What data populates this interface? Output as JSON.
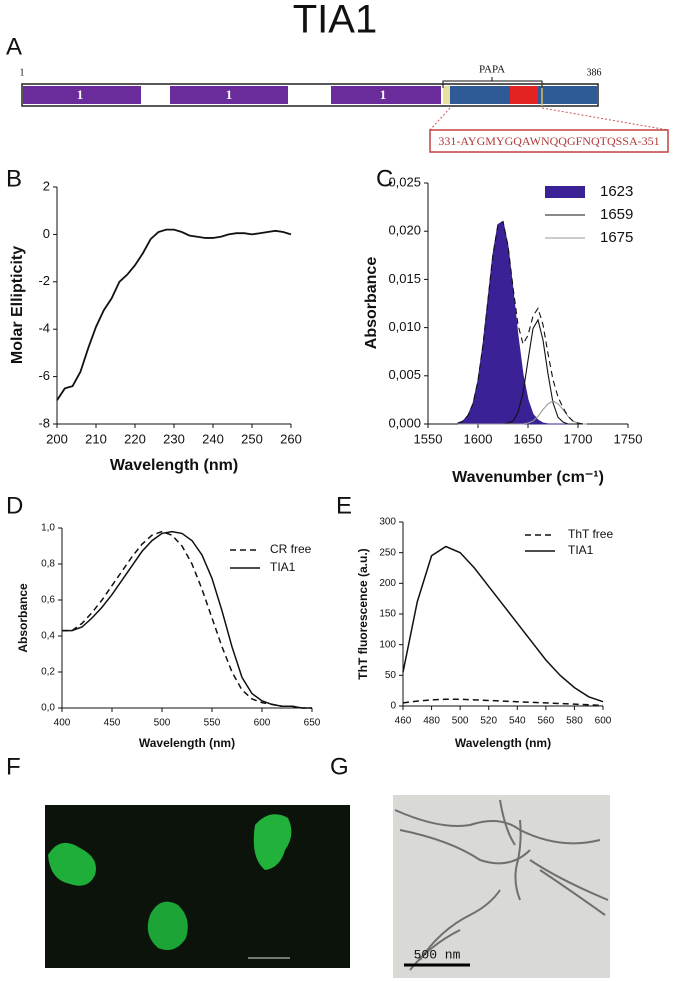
{
  "title": "TIA1",
  "panel_a": {
    "label": "A",
    "start": 1,
    "end": 386,
    "motif": "PAPA",
    "domains": [
      "1",
      "1",
      "1"
    ],
    "peptide": "331-AYGMYGQAWNQQGFNQTQSSA-351"
  },
  "panel_f": {
    "label": "F"
  },
  "panel_g": {
    "label": "G",
    "scale_bar": "500 nm"
  },
  "chart_data": [
    {
      "type": "line",
      "panel": "B",
      "xlabel": "Wavelength (nm)",
      "ylabel": "Molar Ellipticity",
      "x": [
        200,
        202,
        204,
        206,
        208,
        210,
        212,
        214,
        216,
        218,
        220,
        222,
        224,
        226,
        228,
        230,
        232,
        234,
        236,
        238,
        240,
        242,
        244,
        246,
        248,
        250,
        252,
        254,
        256,
        258,
        260
      ],
      "series": [
        {
          "color": "#111111",
          "values": [
            -7,
            -6.5,
            -6.4,
            -5.8,
            -4.8,
            -3.9,
            -3.2,
            -2.7,
            -2.0,
            -1.7,
            -1.3,
            -0.8,
            -0.2,
            0.1,
            0.2,
            0.2,
            0.1,
            -0.05,
            -0.1,
            -0.15,
            -0.15,
            -0.1,
            0.0,
            0.05,
            0.05,
            0.0,
            0.05,
            0.1,
            0.15,
            0.1,
            0.0
          ]
        }
      ],
      "xlim": [
        200,
        260
      ],
      "xticks": [
        200,
        210,
        220,
        230,
        240,
        250,
        260
      ],
      "ylim": [
        -8,
        2
      ],
      "yticks": [
        -8,
        -6,
        -4,
        -2,
        0,
        2
      ]
    },
    {
      "type": "line",
      "panel": "C",
      "xlabel": "Wavenumber (cm⁻¹)",
      "ylabel": "Absorbance",
      "x": [
        1580,
        1585,
        1590,
        1595,
        1600,
        1605,
        1610,
        1615,
        1620,
        1625,
        1630,
        1635,
        1640,
        1645,
        1650,
        1655,
        1660,
        1665,
        1670,
        1675,
        1680,
        1685,
        1690,
        1695,
        1700,
        1705,
        1710
      ],
      "series": [
        {
          "name": "1623",
          "color": "#3a2296",
          "filled": true,
          "values": [
            0.0001,
            0.0003,
            0.0009,
            0.0021,
            0.0045,
            0.0082,
            0.0129,
            0.0176,
            0.0207,
            0.021,
            0.0184,
            0.0139,
            0.0091,
            0.0051,
            0.0025,
            0.001,
            0.0004,
            0.0001,
            0,
            0,
            0,
            0,
            0,
            0,
            0,
            0,
            0
          ]
        },
        {
          "name": "1659",
          "color": "#111111",
          "values": [
            0,
            0,
            0,
            0,
            0,
            0,
            0,
            0,
            0,
            0,
            0.0001,
            0.0003,
            0.0012,
            0.0032,
            0.0066,
            0.0099,
            0.0108,
            0.0087,
            0.0052,
            0.0022,
            0.0007,
            0.0002,
            0,
            0,
            0,
            0,
            0
          ]
        },
        {
          "name": "1675",
          "color": "#999999",
          "values": [
            0,
            0,
            0,
            0,
            0,
            0,
            0,
            0,
            0,
            0,
            0,
            0,
            0,
            0,
            0.0001,
            0.0003,
            0.0008,
            0.0015,
            0.0021,
            0.0024,
            0.0021,
            0.0015,
            0.0008,
            0.0003,
            0.0001,
            0,
            0
          ]
        },
        {
          "color": "#111111",
          "dashed": true,
          "values": [
            0.0001,
            0.0003,
            0.0009,
            0.0021,
            0.0045,
            0.0082,
            0.0129,
            0.0176,
            0.0207,
            0.021,
            0.0185,
            0.0142,
            0.0103,
            0.0083,
            0.0092,
            0.0112,
            0.012,
            0.0103,
            0.0073,
            0.0046,
            0.0028,
            0.0017,
            0.0008,
            0.0003,
            0.0001,
            0,
            0
          ]
        }
      ],
      "xlim": [
        1550,
        1750
      ],
      "xticks": [
        1550,
        1600,
        1650,
        1700,
        1750
      ],
      "ylim": [
        0,
        0.025
      ],
      "yticks": [
        {
          "value": 0,
          "label": "0,000"
        },
        {
          "value": 0.005,
          "label": "0,005"
        },
        {
          "value": 0.01,
          "label": "0,010"
        },
        {
          "value": 0.015,
          "label": "0,015"
        },
        {
          "value": 0.02,
          "label": "0,020"
        },
        {
          "value": 0.025,
          "label": "0,025"
        }
      ]
    },
    {
      "type": "line",
      "panel": "D",
      "xlabel": "Wavelength (nm)",
      "ylabel": "Absorbance",
      "x": [
        400,
        410,
        420,
        430,
        440,
        450,
        460,
        470,
        480,
        490,
        500,
        510,
        520,
        530,
        540,
        550,
        560,
        570,
        580,
        590,
        600,
        610,
        620,
        630,
        640,
        650
      ],
      "series": [
        {
          "name": "CR free",
          "color": "#111111",
          "dashed": true,
          "values": [
            0.43,
            0.43,
            0.47,
            0.53,
            0.6,
            0.68,
            0.76,
            0.84,
            0.91,
            0.96,
            0.98,
            0.96,
            0.9,
            0.8,
            0.66,
            0.5,
            0.34,
            0.2,
            0.1,
            0.05,
            0.03,
            0.02,
            0.01,
            0.01,
            0.0,
            0.0
          ]
        },
        {
          "name": "TIA1",
          "color": "#111111",
          "values": [
            0.43,
            0.43,
            0.45,
            0.5,
            0.56,
            0.63,
            0.71,
            0.79,
            0.87,
            0.93,
            0.97,
            0.98,
            0.97,
            0.93,
            0.85,
            0.72,
            0.54,
            0.34,
            0.17,
            0.08,
            0.04,
            0.02,
            0.01,
            0.01,
            0.0,
            0.0
          ]
        }
      ],
      "xlim": [
        400,
        650
      ],
      "xticks": [
        400,
        450,
        500,
        550,
        600,
        650
      ],
      "ylim": [
        0,
        1
      ],
      "yticks": [
        {
          "value": 0,
          "label": "0,0"
        },
        {
          "value": 0.2,
          "label": "0,2"
        },
        {
          "value": 0.4,
          "label": "0,4"
        },
        {
          "value": 0.6,
          "label": "0,6"
        },
        {
          "value": 0.8,
          "label": "0,8"
        },
        {
          "value": 1,
          "label": "1,0"
        }
      ]
    },
    {
      "type": "line",
      "panel": "E",
      "xlabel": "Wavelength (nm)",
      "ylabel": "ThT fluorescence (a.u.)",
      "x": [
        460,
        470,
        480,
        490,
        500,
        510,
        520,
        530,
        540,
        550,
        560,
        570,
        580,
        590,
        600
      ],
      "series": [
        {
          "name": "ThT free",
          "color": "#111111",
          "dashed": true,
          "values": [
            5,
            8,
            10,
            11,
            11,
            10,
            9,
            8,
            7,
            6,
            5,
            4,
            3,
            2,
            1
          ]
        },
        {
          "name": "TIA1",
          "color": "#111111",
          "values": [
            55,
            170,
            245,
            260,
            250,
            225,
            195,
            165,
            135,
            105,
            75,
            50,
            30,
            15,
            7
          ]
        }
      ],
      "xlim": [
        460,
        600
      ],
      "xticks": [
        460,
        480,
        500,
        520,
        540,
        560,
        580,
        600
      ],
      "ylim": [
        0,
        300
      ],
      "yticks": [
        0,
        50,
        100,
        150,
        200,
        250,
        300
      ]
    }
  ]
}
